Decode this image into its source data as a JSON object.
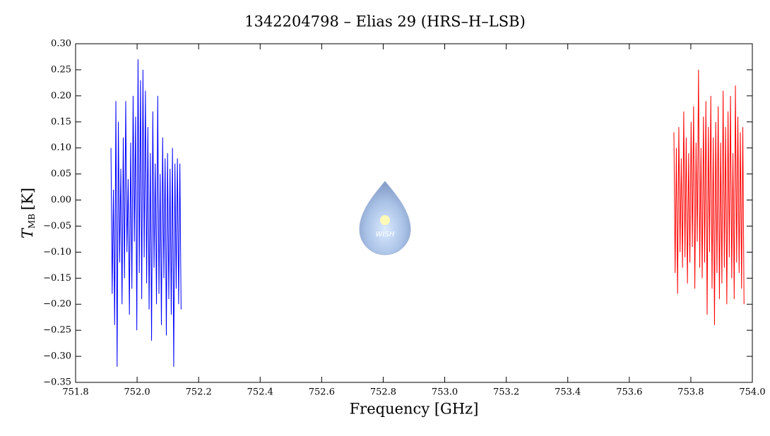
{
  "chart_data": {
    "type": "line",
    "title": "1342204798 – Elias 29 (HRS–H–LSB)",
    "xlabel": "Frequency [GHz]",
    "ylabel": {
      "symbol": "T",
      "subscript": "MB",
      "unit": "[K]"
    },
    "xlim": [
      751.8,
      754.0
    ],
    "ylim": [
      -0.35,
      0.3
    ],
    "xticks": [
      751.8,
      {
        "value": 752.0,
        "label": "752.0"
      },
      752.2,
      752.4,
      752.6,
      752.8,
      {
        "value": 753.0,
        "label": "753.0"
      },
      753.2,
      753.4,
      753.6,
      753.8,
      {
        "value": 754.0,
        "label": "754.0"
      }
    ],
    "yticks": [
      {
        "value": 0.3,
        "label": "0.30"
      },
      {
        "value": 0.25,
        "label": "0.25"
      },
      {
        "value": 0.2,
        "label": "0.20"
      },
      {
        "value": 0.15,
        "label": "0.15"
      },
      {
        "value": 0.1,
        "label": "0.10"
      },
      {
        "value": 0.05,
        "label": "0.05"
      },
      {
        "value": 0.0,
        "label": "0.00"
      },
      {
        "value": -0.05,
        "label": "−0.05"
      },
      {
        "value": -0.1,
        "label": "−0.10"
      },
      {
        "value": -0.15,
        "label": "−0.15"
      },
      {
        "value": -0.2,
        "label": "−0.20"
      },
      {
        "value": -0.25,
        "label": "−0.25"
      },
      {
        "value": -0.3,
        "label": "−0.30"
      },
      {
        "value": -0.35,
        "label": "−0.35"
      }
    ],
    "series": [
      {
        "color": "#0000ff",
        "x": [
          751.915,
          751.919,
          751.923,
          751.927,
          751.931,
          751.935,
          751.939,
          751.943,
          751.947,
          751.951,
          751.955,
          751.959,
          751.963,
          751.967,
          751.971,
          751.975,
          751.979,
          751.983,
          751.987,
          751.991,
          751.995,
          751.999,
          752.003,
          752.007,
          752.011,
          752.015,
          752.019,
          752.023,
          752.027,
          752.031,
          752.035,
          752.039,
          752.043,
          752.047,
          752.051,
          752.055,
          752.059,
          752.063,
          752.067,
          752.071,
          752.075,
          752.079,
          752.083,
          752.087,
          752.091,
          752.095,
          752.099,
          752.103,
          752.107,
          752.111,
          752.115,
          752.119,
          752.123,
          752.127,
          752.131,
          752.135,
          752.139,
          752.143
        ],
        "values": [
          0.1,
          -0.18,
          0.02,
          -0.24,
          0.19,
          -0.32,
          0.15,
          -0.12,
          0.06,
          -0.2,
          0.12,
          -0.15,
          0.19,
          -0.1,
          0.04,
          -0.22,
          0.11,
          -0.17,
          0.2,
          -0.08,
          0.16,
          -0.25,
          0.27,
          -0.14,
          0.23,
          -0.19,
          0.25,
          -0.11,
          0.21,
          -0.16,
          0.14,
          -0.21,
          0.09,
          -0.27,
          0.17,
          -0.13,
          0.07,
          -0.2,
          0.2,
          -0.18,
          0.05,
          -0.24,
          0.12,
          -0.15,
          0.08,
          -0.26,
          0.09,
          -0.19,
          0.06,
          -0.22,
          0.1,
          -0.32,
          0.07,
          -0.17,
          0.08,
          -0.2,
          0.07,
          -0.21
        ]
      },
      {
        "color": "#ff0000",
        "x": [
          753.745,
          753.749,
          753.753,
          753.757,
          753.761,
          753.765,
          753.769,
          753.773,
          753.777,
          753.781,
          753.785,
          753.789,
          753.793,
          753.797,
          753.801,
          753.805,
          753.809,
          753.813,
          753.817,
          753.821,
          753.825,
          753.829,
          753.833,
          753.837,
          753.841,
          753.845,
          753.849,
          753.853,
          753.857,
          753.861,
          753.865,
          753.869,
          753.873,
          753.877,
          753.881,
          753.885,
          753.889,
          753.893,
          753.897,
          753.901,
          753.905,
          753.909,
          753.913,
          753.917,
          753.921,
          753.925,
          753.929,
          753.933,
          753.937,
          753.941,
          753.945,
          753.949,
          753.953,
          753.957,
          753.961,
          753.965,
          753.969,
          753.973
        ],
        "values": [
          0.13,
          -0.14,
          0.1,
          -0.18,
          0.14,
          -0.1,
          0.08,
          -0.13,
          0.17,
          -0.11,
          0.12,
          -0.16,
          0.09,
          -0.12,
          0.15,
          -0.09,
          0.18,
          -0.17,
          0.11,
          -0.08,
          0.25,
          -0.13,
          0.1,
          -0.15,
          0.16,
          -0.12,
          0.19,
          -0.22,
          0.14,
          -0.1,
          0.2,
          -0.17,
          0.12,
          -0.24,
          0.15,
          -0.14,
          0.18,
          -0.19,
          0.11,
          -0.16,
          0.21,
          -0.13,
          0.14,
          -0.2,
          0.17,
          -0.11,
          0.2,
          -0.15,
          0.09,
          -0.19,
          0.22,
          -0.12,
          0.16,
          -0.14,
          0.13,
          -0.17,
          0.14,
          -0.2
        ]
      }
    ]
  }
}
